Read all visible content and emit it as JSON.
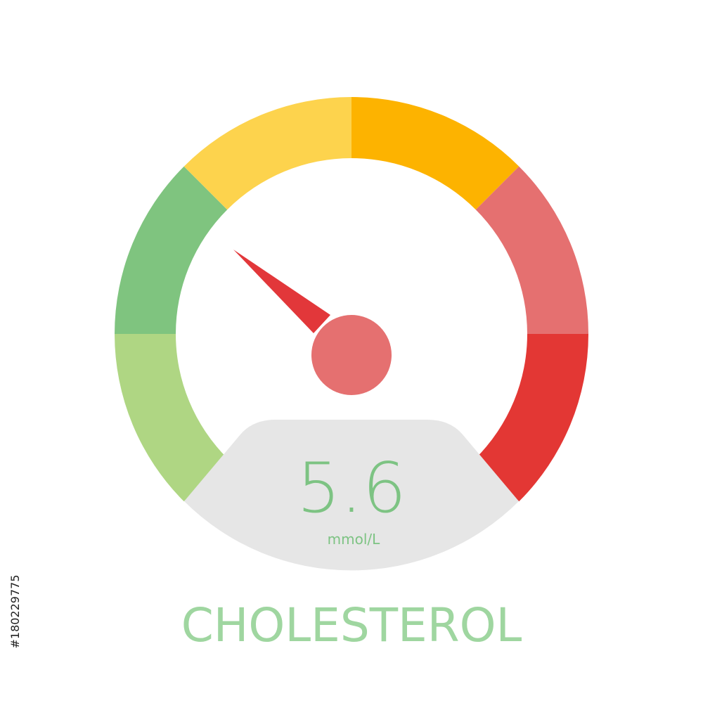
{
  "gauge": {
    "value": 5.6,
    "unit": "mmol/L"
  },
  "title": "CHOLESTEROL",
  "image_id": "#180229775"
}
